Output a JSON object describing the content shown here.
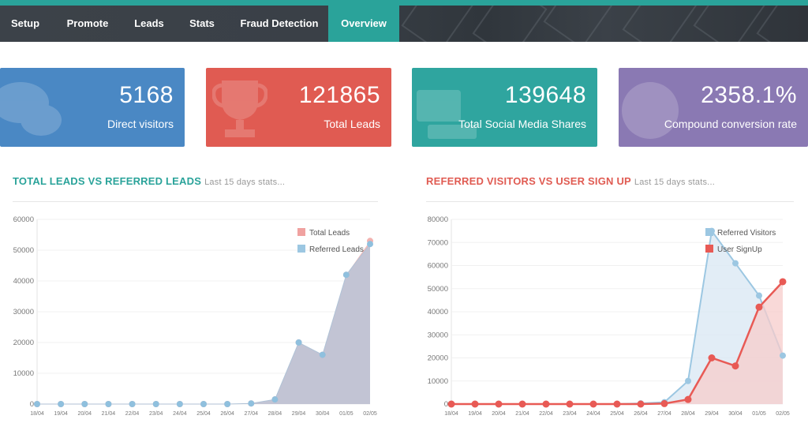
{
  "nav": {
    "tabs": [
      {
        "label": "Setup",
        "active": false
      },
      {
        "label": "Promote",
        "active": false
      },
      {
        "label": "Leads",
        "active": false
      },
      {
        "label": "Stats",
        "active": false
      },
      {
        "label": "Fraud Detection",
        "active": false
      },
      {
        "label": "Overview",
        "active": true
      }
    ]
  },
  "cards": [
    {
      "value": "5168",
      "label": "Direct visitors",
      "color": "#4a88c4",
      "icon": "chat-bubbles-icon"
    },
    {
      "value": "121865",
      "label": "Total Leads",
      "color": "#e05b52",
      "icon": "trophy-icon"
    },
    {
      "value": "139648",
      "label": "Total Social Media Shares",
      "color": "#2fa59f",
      "icon": "share-icon"
    },
    {
      "value": "2358.1%",
      "label": "Compound conversion rate",
      "color": "#8a79b3",
      "icon": "globe-icon"
    }
  ],
  "sections": {
    "left": {
      "title": "TOTAL LEADS VS REFERRED LEADS",
      "subtitle": "Last 15 days stats...",
      "color": "#2aa39a"
    },
    "right": {
      "title": "REFERRED VISITORS VS USER SIGN UP",
      "subtitle": "Last 15 days stats...",
      "color": "#e05b52"
    }
  },
  "chart_data": [
    {
      "type": "area",
      "categories": [
        "18/04",
        "19/04",
        "20/04",
        "21/04",
        "22/04",
        "23/04",
        "24/04",
        "25/04",
        "26/04",
        "27/04",
        "28/04",
        "29/04",
        "30/04",
        "01/05",
        "02/05"
      ],
      "ylim": [
        0,
        60000
      ],
      "yticks": [
        0,
        10000,
        20000,
        30000,
        40000,
        50000,
        60000
      ],
      "legend_position": "top-right",
      "series": [
        {
          "name": "Total Leads",
          "color": "#f0a2a0",
          "values": [
            0,
            0,
            0,
            0,
            0,
            0,
            0,
            0,
            0,
            200,
            1500,
            20000,
            16000,
            42000,
            53000
          ]
        },
        {
          "name": "Referred Leads",
          "color": "#9cc7e2",
          "values": [
            0,
            0,
            0,
            0,
            0,
            0,
            0,
            0,
            0,
            200,
            1500,
            20000,
            16000,
            42000,
            52000
          ]
        }
      ]
    },
    {
      "type": "area",
      "categories": [
        "18/04",
        "19/04",
        "20/04",
        "21/04",
        "22/04",
        "23/04",
        "24/04",
        "25/04",
        "26/04",
        "27/04",
        "28/04",
        "29/04",
        "30/04",
        "01/05",
        "02/05"
      ],
      "ylim": [
        0,
        80000
      ],
      "yticks": [
        0,
        10000,
        20000,
        30000,
        40000,
        50000,
        60000,
        70000,
        80000
      ],
      "legend_position": "top-right",
      "series": [
        {
          "name": "Referred Visitors",
          "color": "#9cc7e2",
          "values": [
            0,
            0,
            0,
            0,
            0,
            0,
            0,
            0,
            300,
            800,
            10000,
            75000,
            61000,
            47000,
            21000
          ]
        },
        {
          "name": "User SignUp",
          "color": "#e85a55",
          "values": [
            0,
            0,
            0,
            0,
            0,
            0,
            0,
            0,
            0,
            200,
            2000,
            20000,
            16500,
            42000,
            53000
          ]
        }
      ]
    }
  ]
}
